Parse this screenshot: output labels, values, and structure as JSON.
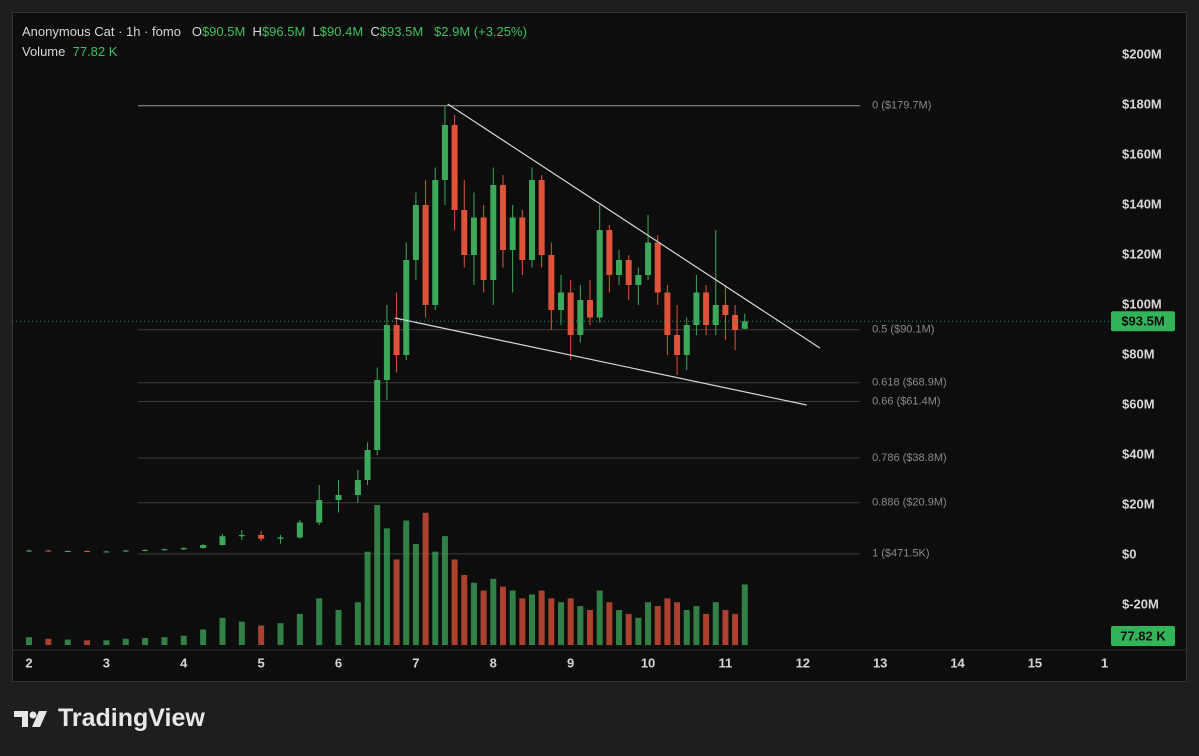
{
  "chart_data": {
    "type": "candlestick",
    "title": "Anonymous Cat · 1h · fomo",
    "ohlc": [
      {
        "key": "O",
        "value": "$90.5M"
      },
      {
        "key": "H",
        "value": "$96.5M"
      },
      {
        "key": "L",
        "value": "$90.4M"
      },
      {
        "key": "C",
        "value": "$93.5M"
      }
    ],
    "change": "$2.9M",
    "change_percent": "(+3.25%)",
    "volume_label": "Volume",
    "volume_value": "77.82 K",
    "last_price": 93.5,
    "last_price_label": "$93.5M",
    "up_color": "#3ea85a",
    "down_color": "#e0533a",
    "xlim": [
      1.78,
      15.97
    ],
    "xticks": [
      2,
      3,
      4,
      5,
      6,
      7,
      8,
      9,
      10,
      11,
      12,
      13,
      14,
      15,
      {
        "value": 15.9,
        "label": "1"
      }
    ],
    "ylim": [
      -38,
      217.2
    ],
    "yticks": [
      {
        "value": 200,
        "label": "$200M"
      },
      {
        "value": 180,
        "label": "$180M"
      },
      {
        "value": 160,
        "label": "$160M"
      },
      {
        "value": 140,
        "label": "$140M"
      },
      {
        "value": 120,
        "label": "$120M"
      },
      {
        "value": 100,
        "label": "$100M"
      },
      {
        "value": 80,
        "label": "$80M"
      },
      {
        "value": 60,
        "label": "$60M"
      },
      {
        "value": 40,
        "label": "$40M"
      },
      {
        "value": 20,
        "label": "$20M"
      },
      {
        "value": 0,
        "label": "$0"
      },
      {
        "value": -20,
        "label": "$-20M"
      }
    ],
    "x": [
      2.0,
      2.25,
      2.5,
      2.75,
      3.0,
      3.25,
      3.5,
      3.75,
      4.0,
      4.25,
      4.5,
      4.75,
      5.0,
      5.25,
      5.5,
      5.75,
      6.0,
      6.25,
      6.375,
      6.5,
      6.625,
      6.75,
      6.875,
      7.0,
      7.125,
      7.25,
      7.375,
      7.5,
      7.625,
      7.75,
      7.875,
      8.0,
      8.125,
      8.25,
      8.375,
      8.5,
      8.625,
      8.75,
      8.875,
      9.0,
      9.125,
      9.25,
      9.375,
      9.5,
      9.625,
      9.75,
      9.875,
      10.0,
      10.125,
      10.25,
      10.375,
      10.5,
      10.625,
      10.75,
      10.875,
      11.0,
      11.125,
      11.25
    ],
    "open": [
      1.5,
      1.8,
      1.5,
      1.6,
      1.3,
      1.4,
      1.8,
      2.0,
      2.3,
      2.8,
      4.0,
      7.5,
      8,
      6.5,
      7,
      13,
      22,
      24,
      30,
      42,
      70,
      92,
      80,
      118,
      140,
      100,
      150,
      172,
      138,
      120,
      135,
      110,
      148,
      122,
      135,
      118,
      150,
      120,
      98,
      105,
      88,
      102,
      95,
      130,
      112,
      118,
      108,
      112,
      125,
      105,
      88,
      80,
      92,
      105,
      92,
      100,
      96,
      90.5
    ],
    "high": [
      2.2,
      2.0,
      1.9,
      1.8,
      1.7,
      2.0,
      2.3,
      2.6,
      3.0,
      4.5,
      8.5,
      10,
      9.5,
      8,
      14,
      28,
      30,
      34,
      45,
      75,
      100,
      105,
      125,
      145,
      150,
      155,
      179.7,
      176,
      150,
      145,
      140,
      155,
      152,
      140,
      138,
      155,
      152,
      125,
      112,
      110,
      108,
      110,
      140,
      132,
      122,
      120,
      115,
      136,
      128,
      108,
      100,
      95,
      112,
      108,
      130,
      108,
      100,
      96.5
    ],
    "low": [
      1.2,
      1.3,
      1.2,
      1.1,
      1.0,
      1.2,
      1.5,
      1.7,
      2.0,
      2.5,
      3.8,
      6,
      5.5,
      4.5,
      6.5,
      12,
      17,
      21,
      28,
      40,
      62,
      73,
      78,
      110,
      95,
      98,
      140,
      130,
      115,
      108,
      105,
      100,
      115,
      105,
      112,
      115,
      115,
      90,
      92,
      78,
      85,
      92,
      93,
      105,
      108,
      102,
      100,
      110,
      100,
      80,
      72,
      74,
      88,
      88,
      88,
      86,
      82,
      90.4
    ],
    "close": [
      1.8,
      1.5,
      1.6,
      1.3,
      1.4,
      1.8,
      2.0,
      2.3,
      2.8,
      4.0,
      7.5,
      8,
      6.5,
      7,
      13,
      22,
      24,
      30,
      42,
      70,
      92,
      80,
      118,
      140,
      100,
      150,
      172,
      138,
      120,
      135,
      110,
      148,
      122,
      135,
      118,
      150,
      120,
      98,
      105,
      88,
      102,
      95,
      130,
      112,
      118,
      108,
      112,
      125,
      105,
      88,
      80,
      92,
      105,
      92,
      100,
      96,
      90,
      93.5
    ],
    "volume": [
      10,
      8,
      7,
      6,
      6,
      8,
      9,
      10,
      12,
      20,
      35,
      30,
      25,
      28,
      40,
      60,
      45,
      55,
      120,
      180,
      150,
      110,
      160,
      130,
      170,
      120,
      140,
      110,
      90,
      80,
      70,
      85,
      75,
      70,
      60,
      65,
      70,
      60,
      55,
      60,
      50,
      45,
      70,
      55,
      45,
      40,
      35,
      55,
      50,
      60,
      55,
      45,
      50,
      40,
      55,
      45,
      40,
      77.82
    ],
    "fib_x": [
      3.41,
      12.74
    ],
    "fib_levels": [
      {
        "label": "0 ($179.7M)",
        "value": 179.7
      },
      {
        "label": "0.5 ($90.1M)",
        "value": 90.1
      },
      {
        "label": "0.618 ($68.9M)",
        "value": 68.9
      },
      {
        "label": "0.66 ($61.4M)",
        "value": 61.4
      },
      {
        "label": "0.786 ($38.8M)",
        "value": 38.8
      },
      {
        "label": "0.886 ($20.9M)",
        "value": 20.9
      },
      {
        "label": "1 ($471.5K)",
        "value": 0.4715
      }
    ],
    "trendlines": [
      {
        "x": [
          7.41,
          12.22
        ],
        "y": [
          180.4,
          82.8
        ]
      },
      {
        "x": [
          6.73,
          12.05
        ],
        "y": [
          94.8,
          60
        ]
      }
    ],
    "watermark": "TradingView"
  }
}
